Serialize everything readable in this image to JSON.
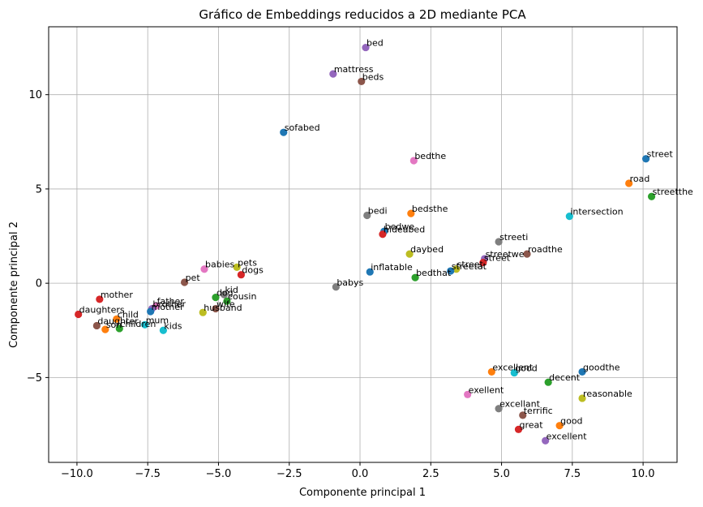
{
  "chart_data": {
    "type": "scatter",
    "title": "Gráfico de Embeddings reducidos a 2D mediante PCA",
    "xlabel": "Componente principal 1",
    "ylabel": "Componente principal 2",
    "xlim": [
      -11,
      11.2
    ],
    "ylim": [
      -9.5,
      13.6
    ],
    "xticks": [
      -10,
      -7.5,
      -5,
      -2.5,
      0,
      2.5,
      5,
      7.5,
      10
    ],
    "xtick_labels": [
      "−10.0",
      "−7.5",
      "−5.0",
      "−2.5",
      "0.0",
      "2.5",
      "5.0",
      "7.5",
      "10.0"
    ],
    "yticks": [
      -5,
      0,
      5,
      10
    ],
    "ytick_labels": [
      "−5",
      "0",
      "5",
      "10"
    ],
    "grid": true,
    "palette": [
      "#1f77b4",
      "#ff7f0e",
      "#2ca02c",
      "#d62728",
      "#9467bd",
      "#8c564b",
      "#e377c2",
      "#7f7f7f",
      "#bcbd22",
      "#17becf"
    ],
    "points": [
      {
        "label": "bed",
        "x": 0.2,
        "y": 12.5,
        "color": "#9467bd"
      },
      {
        "label": "mattress",
        "x": -0.95,
        "y": 11.1,
        "color": "#9467bd"
      },
      {
        "label": "beds",
        "x": 0.05,
        "y": 10.7,
        "color": "#8c564b"
      },
      {
        "label": "sofabed",
        "x": -2.7,
        "y": 8.0,
        "color": "#1f77b4"
      },
      {
        "label": "bedthe",
        "x": 1.9,
        "y": 6.5,
        "color": "#e377c2"
      },
      {
        "label": "street",
        "x": 10.1,
        "y": 6.6,
        "color": "#1f77b4"
      },
      {
        "label": "road",
        "x": 9.5,
        "y": 5.3,
        "color": "#ff7f0e"
      },
      {
        "label": "streetthe",
        "x": 10.3,
        "y": 4.6,
        "color": "#2ca02c"
      },
      {
        "label": "bedi",
        "x": 0.25,
        "y": 3.6,
        "color": "#7f7f7f"
      },
      {
        "label": "bedsthe",
        "x": 1.8,
        "y": 3.7,
        "color": "#ff7f0e"
      },
      {
        "label": "intersection",
        "x": 7.4,
        "y": 3.55,
        "color": "#17becf"
      },
      {
        "label": "bedwe",
        "x": 0.85,
        "y": 2.75,
        "color": "#1f77b4"
      },
      {
        "label": "hideabed",
        "x": 0.8,
        "y": 2.6,
        "color": "#d62728"
      },
      {
        "label": "streeti",
        "x": 4.9,
        "y": 2.2,
        "color": "#7f7f7f"
      },
      {
        "label": "daybed",
        "x": 1.75,
        "y": 1.55,
        "color": "#bcbd22"
      },
      {
        "label": "roadthe",
        "x": 5.9,
        "y": 1.55,
        "color": "#8c564b"
      },
      {
        "label": "streetwe",
        "x": 4.4,
        "y": 1.3,
        "color": "#9467bd"
      },
      {
        "label": "street",
        "x": 4.35,
        "y": 1.1,
        "color": "#d62728"
      },
      {
        "label": "street",
        "x": 3.4,
        "y": 0.75,
        "color": "#bcbd22"
      },
      {
        "label": "streetat",
        "x": 3.2,
        "y": 0.65,
        "color": "#1f77b4"
      },
      {
        "label": "inflatable",
        "x": 0.35,
        "y": 0.6,
        "color": "#1f77b4"
      },
      {
        "label": "bedthat",
        "x": 1.95,
        "y": 0.3,
        "color": "#2ca02c"
      },
      {
        "label": "babys",
        "x": -0.85,
        "y": -0.2,
        "color": "#7f7f7f"
      },
      {
        "label": "babies",
        "x": -5.5,
        "y": 0.75,
        "color": "#e377c2"
      },
      {
        "label": "pets",
        "x": -4.35,
        "y": 0.85,
        "color": "#bcbd22"
      },
      {
        "label": "dogs",
        "x": -4.2,
        "y": 0.45,
        "color": "#d62728"
      },
      {
        "label": "pet",
        "x": -6.2,
        "y": 0.05,
        "color": "#8c564b"
      },
      {
        "label": "kid",
        "x": -4.8,
        "y": -0.6,
        "color": "#7f7f7f"
      },
      {
        "label": "dog",
        "x": -5.1,
        "y": -0.75,
        "color": "#2ca02c"
      },
      {
        "label": "cousin",
        "x": -4.7,
        "y": -0.95,
        "color": "#2ca02c"
      },
      {
        "label": "mother",
        "x": -9.2,
        "y": -0.85,
        "color": "#d62728"
      },
      {
        "label": "father",
        "x": -7.2,
        "y": -1.2,
        "color": "#e377c2"
      },
      {
        "label": "brother",
        "x": -7.35,
        "y": -1.35,
        "color": "#9467bd"
      },
      {
        "label": "mother",
        "x": -7.4,
        "y": -1.5,
        "color": "#1f77b4"
      },
      {
        "label": "wife",
        "x": -5.1,
        "y": -1.35,
        "color": "#8c564b"
      },
      {
        "label": "husband",
        "x": -5.55,
        "y": -1.55,
        "color": "#bcbd22"
      },
      {
        "label": "daughters",
        "x": -9.95,
        "y": -1.65,
        "color": "#d62728"
      },
      {
        "label": "child",
        "x": -8.6,
        "y": -1.9,
        "color": "#ff7f0e"
      },
      {
        "label": "daughter",
        "x": -9.3,
        "y": -2.25,
        "color": "#8c564b"
      },
      {
        "label": "mum",
        "x": -7.6,
        "y": -2.2,
        "color": "#17becf"
      },
      {
        "label": "son",
        "x": -9.0,
        "y": -2.45,
        "color": "#ff7f0e"
      },
      {
        "label": "children",
        "x": -8.5,
        "y": -2.4,
        "color": "#2ca02c"
      },
      {
        "label": "kids",
        "x": -6.95,
        "y": -2.5,
        "color": "#17becf"
      },
      {
        "label": "excellent",
        "x": 4.65,
        "y": -4.7,
        "color": "#ff7f0e"
      },
      {
        "label": "good",
        "x": 5.45,
        "y": -4.75,
        "color": "#17becf"
      },
      {
        "label": "goodthe",
        "x": 7.85,
        "y": -4.7,
        "color": "#1f77b4"
      },
      {
        "label": "decent",
        "x": 6.65,
        "y": -5.25,
        "color": "#2ca02c"
      },
      {
        "label": "exellent",
        "x": 3.8,
        "y": -5.9,
        "color": "#e377c2"
      },
      {
        "label": "reasonable",
        "x": 7.85,
        "y": -6.1,
        "color": "#bcbd22"
      },
      {
        "label": "excellant",
        "x": 4.9,
        "y": -6.65,
        "color": "#7f7f7f"
      },
      {
        "label": "terrific",
        "x": 5.75,
        "y": -7.0,
        "color": "#8c564b"
      },
      {
        "label": "good",
        "x": 7.05,
        "y": -7.55,
        "color": "#ff7f0e"
      },
      {
        "label": "great",
        "x": 5.6,
        "y": -7.75,
        "color": "#d62728"
      },
      {
        "label": "excellent",
        "x": 6.55,
        "y": -8.35,
        "color": "#9467bd"
      }
    ]
  }
}
